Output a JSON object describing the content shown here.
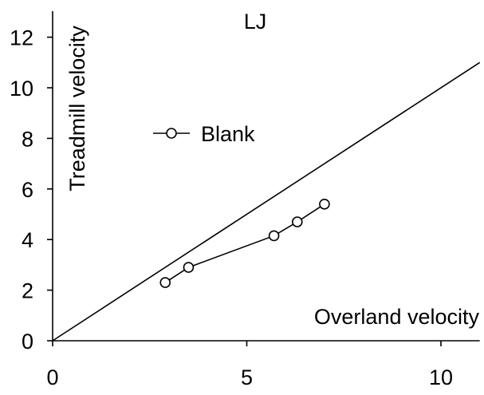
{
  "chart_data": {
    "type": "line",
    "title": "LJ",
    "xlabel": "Overland velocity",
    "ylabel": "Treadmill velocity",
    "xlim": [
      0,
      11
    ],
    "ylim": [
      0,
      13
    ],
    "x_ticks": [
      0,
      5,
      10
    ],
    "y_ticks": [
      0,
      2,
      4,
      6,
      8,
      10,
      12
    ],
    "grid": false,
    "legend_position": "upper-left",
    "reference_line": {
      "x": [
        0,
        11
      ],
      "y": [
        0,
        11
      ],
      "color": "#000000"
    },
    "series": [
      {
        "name": "Blank",
        "x": [
          2.9,
          3.5,
          5.7,
          6.3,
          7.0
        ],
        "y": [
          2.3,
          2.9,
          4.15,
          4.7,
          5.4
        ],
        "color": "#000000",
        "marker": "open-circle"
      }
    ]
  }
}
